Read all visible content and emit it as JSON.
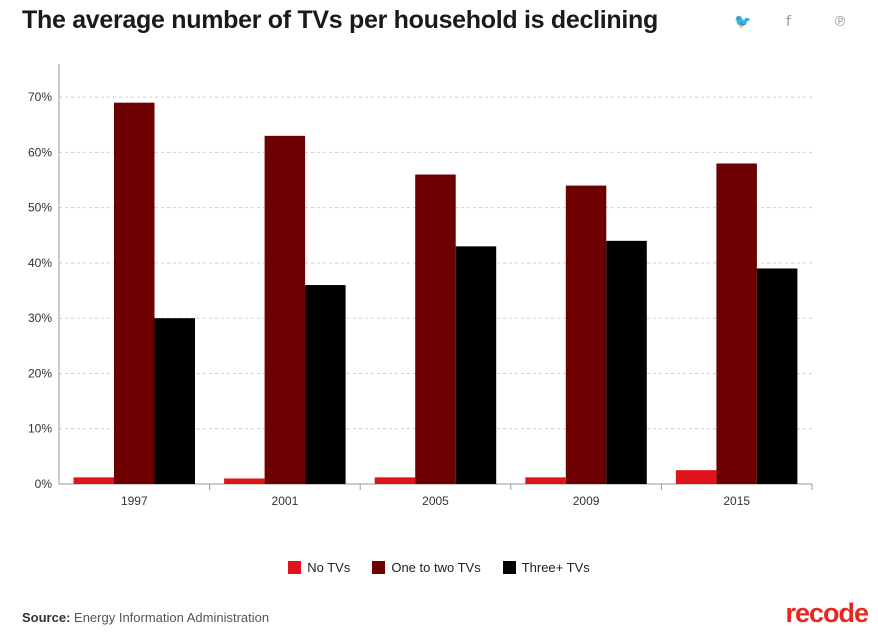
{
  "header": {
    "title": "The average number of TVs per household is declining",
    "share": {
      "twitter": "🐦",
      "facebook": "f",
      "pinterest": "℗"
    }
  },
  "chart_data": {
    "type": "bar",
    "title": "The average number of TVs per household is declining",
    "categories": [
      "1997",
      "2001",
      "2005",
      "2009",
      "2015"
    ],
    "series": [
      {
        "name": "No TVs",
        "color": "#e0131b",
        "values": [
          1.2,
          1.0,
          1.2,
          1.2,
          2.5
        ]
      },
      {
        "name": "One to two TVs",
        "color": "#6d0000",
        "values": [
          69,
          63,
          56,
          54,
          58
        ]
      },
      {
        "name": "Three+ TVs",
        "color": "#000000",
        "values": [
          30,
          36,
          43,
          44,
          39
        ]
      }
    ],
    "yticks": [
      "0%",
      "10%",
      "20%",
      "30%",
      "40%",
      "50%",
      "60%",
      "70%"
    ],
    "ylim": [
      0,
      76
    ],
    "grid": true,
    "legend": "bottom-center"
  },
  "footer": {
    "source_label": "Source:",
    "source_text": "Energy Information Administration",
    "logo": "recode"
  }
}
